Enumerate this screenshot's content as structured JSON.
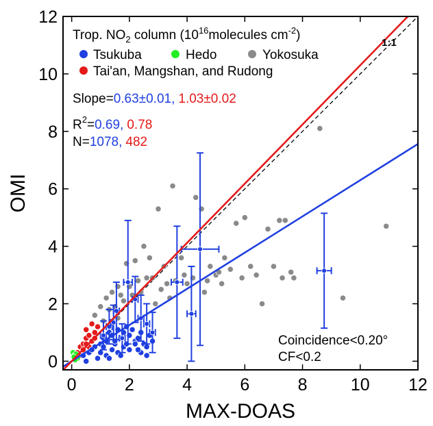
{
  "chart_data": {
    "type": "scatter",
    "xlabel": "MAX-DOAS",
    "ylabel": "OMI",
    "xlim": [
      -0.3,
      12
    ],
    "ylim": [
      -0.3,
      12
    ],
    "x_ticks": [
      "0",
      "2",
      "4",
      "6",
      "8",
      "10",
      "12"
    ],
    "y_ticks": [
      "0",
      "2",
      "4",
      "6",
      "8",
      "10",
      "12"
    ],
    "legend": {
      "title_prefix": "Trop. NO",
      "title_sub": "2",
      "title_mid": " column (10",
      "title_sup": "16",
      "title_mid2": "molecules cm",
      "title_sup2": "-2",
      "title_end": ")",
      "placement": "top-left",
      "entries": [
        {
          "label": "Tsukuba",
          "color": "#1f3fe0"
        },
        {
          "label": "Hedo",
          "color": "#22ee22"
        },
        {
          "label": "Yokosuka",
          "color": "#8a8a8a"
        },
        {
          "label": "Tai'an, Mangshan, and Rudong",
          "color": "#e41a1a"
        }
      ]
    },
    "stats": {
      "slope_label": "Slope=",
      "slope_blue": "0.63±0.01,",
      "slope_red": "1.03±0.02",
      "r2_label": "R",
      "r2_sup": "2",
      "r2_eq": "=",
      "r2_blue": "0.69,",
      "r2_red": "0.78",
      "n_label": "N=",
      "n_blue": "1078,",
      "n_red": "482"
    },
    "one_to_one_label": "1:1",
    "annotation_line1": "Coincidence<0.20°",
    "annotation_line2": "CF<0.2",
    "fit_lines": [
      {
        "color": "#1f3fe0",
        "slope": 0.63,
        "intercept": 0.0
      },
      {
        "color": "#e41a1a",
        "slope": 1.03,
        "intercept": 0.0
      }
    ],
    "series": [
      {
        "name": "Yokosuka",
        "color": "#8a8a8a",
        "x": [
          3.5,
          3.0,
          4.3,
          4.5,
          6.8,
          5.7,
          6.0,
          5.3,
          7.2,
          7.4,
          7.6,
          7.3,
          8.6,
          9.4,
          10.9,
          6.6,
          7.7,
          4.8,
          5.0,
          5.5,
          3.2,
          3.8,
          2.5,
          2.2,
          2.7,
          1.9,
          1.6,
          1.4,
          1.2,
          2.8,
          3.1,
          3.3,
          4.0,
          4.2,
          2.4,
          2.6,
          1.8,
          1.5,
          1.3,
          1.7,
          2.0,
          2.3,
          2.9,
          3.6,
          3.9,
          4.7,
          5.1,
          5.9,
          6.2,
          0.8,
          1.0,
          1.1,
          1.6,
          2.1,
          3.4,
          4.6,
          5.2,
          6.4,
          7.0
        ],
        "y": [
          6.1,
          5.3,
          5.7,
          5.3,
          4.6,
          4.8,
          5.0,
          3.6,
          4.9,
          4.9,
          3.1,
          2.9,
          8.1,
          2.2,
          4.7,
          2.0,
          2.9,
          3.3,
          3.0,
          3.2,
          3.3,
          3.6,
          4.0,
          3.5,
          3.6,
          3.4,
          2.6,
          2.4,
          2.2,
          2.9,
          2.5,
          2.7,
          2.7,
          2.9,
          2.4,
          2.9,
          2.1,
          1.9,
          1.8,
          2.3,
          2.6,
          2.8,
          2.0,
          2.8,
          3.0,
          2.8,
          3.1,
          2.9,
          3.3,
          1.6,
          1.9,
          1.4,
          1.5,
          2.3,
          2.2,
          2.4,
          2.7,
          3.0,
          3.3
        ]
      },
      {
        "name": "Tai'an, Mangshan, and Rudong",
        "color": "#e41a1a",
        "x": [
          0.2,
          0.3,
          0.4,
          0.5,
          0.5,
          0.6,
          0.7,
          0.7,
          0.8,
          0.9,
          0.4,
          0.6,
          0.3,
          0.8,
          0.5
        ],
        "y": [
          0.3,
          0.5,
          0.6,
          0.8,
          1.1,
          0.9,
          1.3,
          0.7,
          1.0,
          1.2,
          0.4,
          0.5,
          0.2,
          0.8,
          0.6
        ]
      },
      {
        "name": "Hedo",
        "color": "#22ee22",
        "x": [
          0.05,
          0.1,
          0.15,
          0.2,
          0.12,
          0.08
        ],
        "y": [
          0.3,
          0.2,
          0.25,
          0.1,
          0.05,
          0.15
        ]
      },
      {
        "name": "Tsukuba",
        "color": "#1f3fe0",
        "x": [
          0.4,
          0.6,
          0.8,
          1.0,
          1.1,
          1.2,
          1.3,
          1.4,
          1.5,
          1.6,
          1.7,
          1.8,
          1.9,
          2.0,
          2.1,
          2.2,
          2.3,
          2.4,
          2.5,
          2.6,
          2.7,
          2.8,
          0.9,
          1.0,
          1.2,
          1.4,
          1.6,
          1.8,
          2.0,
          2.2,
          2.4,
          2.6,
          0.7,
          1.1,
          1.5,
          1.9,
          2.3,
          0.5,
          1.3,
          1.7
        ],
        "y": [
          0.2,
          0.3,
          0.5,
          0.6,
          0.8,
          0.7,
          1.0,
          0.9,
          0.6,
          1.1,
          0.8,
          1.0,
          1.2,
          0.9,
          1.1,
          0.7,
          0.8,
          1.0,
          0.6,
          0.5,
          0.9,
          0.7,
          0.1,
          0.3,
          0.2,
          0.4,
          0.3,
          0.5,
          0.4,
          0.6,
          0.3,
          0.2,
          0.4,
          0.5,
          0.7,
          0.6,
          0.4,
          0.0,
          0.1,
          0.2
        ]
      }
    ],
    "errorbars": {
      "color": "#1f3fe0",
      "points": [
        {
          "x": 8.75,
          "y": 3.15,
          "xerr": 0.25,
          "yerr": 2.0
        },
        {
          "x": 4.45,
          "y": 3.9,
          "xerr": 0.65,
          "yerr": 3.35
        },
        {
          "x": 3.65,
          "y": 2.75,
          "xerr": 0.2,
          "yerr": 1.95
        },
        {
          "x": 4.15,
          "y": 1.65,
          "xerr": 0.15,
          "yerr": 1.65
        },
        {
          "x": 1.95,
          "y": 2.75,
          "xerr": 0.15,
          "yerr": 2.15
        },
        {
          "x": 1.55,
          "y": 1.75,
          "xerr": 0.1,
          "yerr": 1.0
        },
        {
          "x": 2.2,
          "y": 2.15,
          "xerr": 0.1,
          "yerr": 0.8
        },
        {
          "x": 1.3,
          "y": 1.2,
          "xerr": 0.1,
          "yerr": 0.6
        },
        {
          "x": 2.6,
          "y": 1.3,
          "xerr": 0.1,
          "yerr": 0.7
        },
        {
          "x": 2.8,
          "y": 1.0,
          "xerr": 0.1,
          "yerr": 0.7
        },
        {
          "x": 1.1,
          "y": 0.9,
          "xerr": 0.1,
          "yerr": 0.5
        },
        {
          "x": 1.75,
          "y": 0.8,
          "xerr": 0.1,
          "yerr": 0.5
        },
        {
          "x": 2.4,
          "y": 1.5,
          "xerr": 0.1,
          "yerr": 0.8
        },
        {
          "x": 1.45,
          "y": 1.35,
          "xerr": 0.1,
          "yerr": 0.6
        }
      ]
    }
  }
}
